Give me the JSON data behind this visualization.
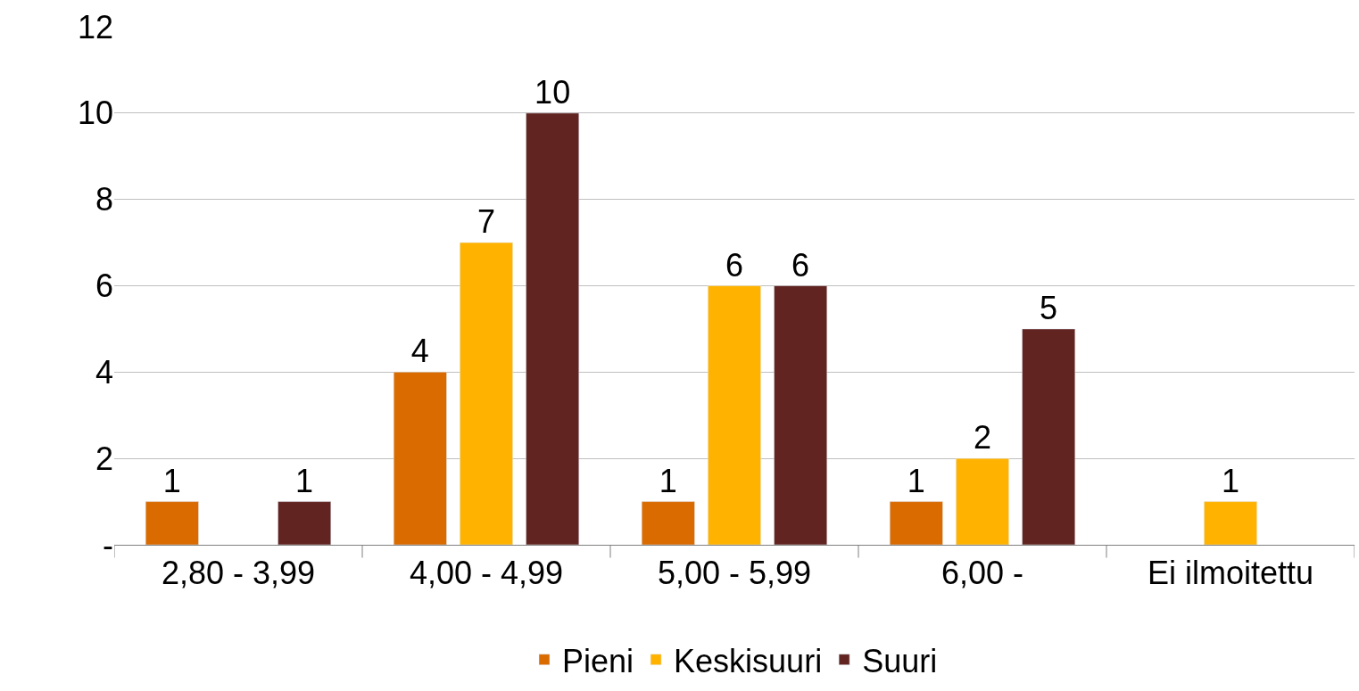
{
  "chart_data": {
    "type": "bar",
    "categories": [
      "2,80 - 3,99",
      "4,00 - 4,99",
      "5,00 - 5,99",
      "6,00 -",
      "Ei ilmoitettu"
    ],
    "series": [
      {
        "name": "Pieni",
        "color": "#d96b00",
        "values": [
          1,
          4,
          1,
          1,
          null
        ]
      },
      {
        "name": "Keskisuuri",
        "color": "#ffb300",
        "values": [
          null,
          7,
          6,
          2,
          1
        ]
      },
      {
        "name": "Suuri",
        "color": "#612420",
        "values": [
          1,
          10,
          6,
          5,
          null
        ]
      }
    ],
    "ylim": [
      0,
      12
    ],
    "yticks": [
      {
        "value": 0,
        "label": "-"
      },
      2,
      4,
      6,
      8,
      10,
      12
    ],
    "grid": "y",
    "legend": "bottom",
    "data_labels": true
  }
}
